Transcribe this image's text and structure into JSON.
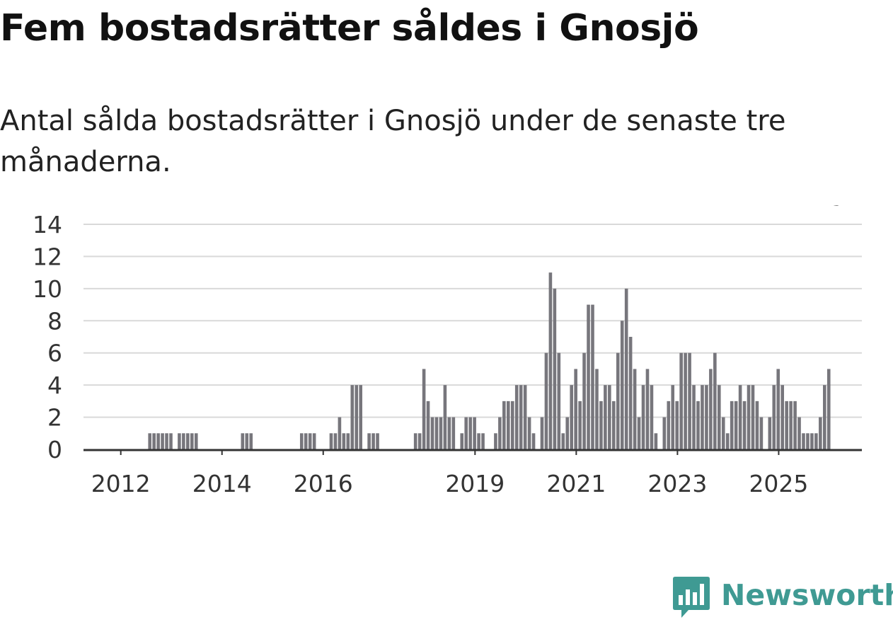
{
  "title": "Fem bostadsrätter såldes i Gnosjö",
  "subtitle": "Antal sålda bostadsrätter i Gnosjö under de senaste tre månaderna.",
  "brand": {
    "name": "Newsworthy",
    "icon": "newsworthy-logo-icon"
  },
  "colors": {
    "bar": "#77767c",
    "highlight": "#1a9b98",
    "grid": "#d9d9d9",
    "axis": "#333333",
    "brand": "#3f9a93"
  },
  "chart_data": {
    "type": "bar",
    "title": "Fem bostadsrätter såldes i Gnosjö",
    "subtitle": "Antal sålda bostadsrätter i Gnosjö under de senaste tre månaderna.",
    "xlabel": "",
    "ylabel": "",
    "ylim": [
      0,
      14
    ],
    "yticks": [
      0,
      2,
      4,
      6,
      8,
      10,
      12,
      14
    ],
    "grid": true,
    "x_start": "2011-08",
    "frequency": "monthly",
    "xtick_labels": [
      {
        "label": "2012",
        "index": 8
      },
      {
        "label": "2014",
        "index": 32
      },
      {
        "label": "2016",
        "index": 56
      },
      {
        "label": "2019",
        "index": 92
      },
      {
        "label": "2021",
        "index": 116
      },
      {
        "label": "2023",
        "index": 140
      },
      {
        "label": "2025",
        "index": 164
      }
    ],
    "values": [
      0,
      0,
      0,
      0,
      0,
      0,
      0,
      0,
      0,
      0,
      0,
      0,
      0,
      0,
      0,
      1,
      1,
      1,
      1,
      1,
      1,
      0,
      1,
      1,
      1,
      1,
      1,
      0,
      0,
      0,
      0,
      0,
      0,
      0,
      0,
      0,
      0,
      1,
      1,
      1,
      0,
      0,
      0,
      0,
      0,
      0,
      0,
      0,
      0,
      0,
      0,
      1,
      1,
      1,
      1,
      0,
      0,
      0,
      1,
      1,
      2,
      1,
      1,
      4,
      4,
      4,
      0,
      1,
      1,
      1,
      0,
      0,
      0,
      0,
      0,
      0,
      0,
      0,
      1,
      1,
      5,
      3,
      2,
      2,
      2,
      4,
      2,
      2,
      0,
      1,
      2,
      2,
      2,
      1,
      1,
      0,
      0,
      1,
      2,
      3,
      3,
      3,
      4,
      4,
      4,
      2,
      1,
      0,
      2,
      6,
      11,
      10,
      6,
      1,
      2,
      4,
      5,
      3,
      6,
      9,
      9,
      5,
      3,
      4,
      4,
      3,
      6,
      8,
      10,
      7,
      5,
      2,
      4,
      5,
      4,
      1,
      0,
      2,
      3,
      4,
      3,
      6,
      6,
      6,
      4,
      3,
      4,
      4,
      5,
      6,
      4,
      2,
      1,
      3,
      3,
      4,
      3,
      4,
      4,
      3,
      2,
      0,
      2,
      4,
      5,
      4,
      3,
      3,
      3,
      2,
      1,
      1,
      1,
      1,
      2,
      4,
      5
    ],
    "highlight_index": 178,
    "highlight_label": "5"
  }
}
